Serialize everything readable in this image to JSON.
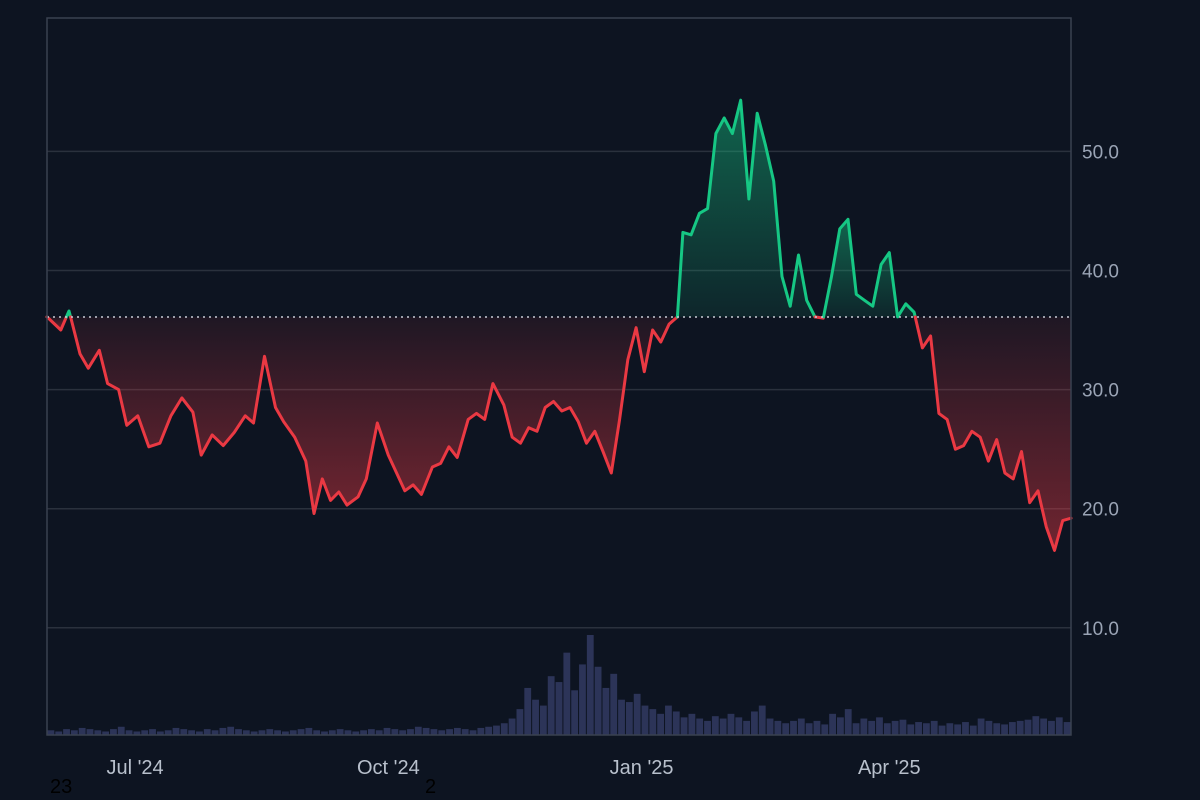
{
  "chart_data": {
    "type": "area",
    "baseline": 36.1,
    "x_range": [
      "2024-05-30",
      "2025-06-06"
    ],
    "ylim": [
      1,
      61.2
    ],
    "y_ticks": [
      "10.0",
      "20.0",
      "30.0",
      "40.0",
      "50.0"
    ],
    "y_tick_values": [
      10,
      20,
      30,
      40,
      50
    ],
    "x_ticks": [
      {
        "label": "Jul '24",
        "date": "2024-07-01"
      },
      {
        "label": "Oct '24",
        "date": "2024-10-01"
      },
      {
        "label": "Jan '25",
        "date": "2025-01-01"
      },
      {
        "label": "Apr '25",
        "date": "2025-04-01"
      }
    ],
    "grid": true,
    "series": [
      {
        "role": "price",
        "points": [
          [
            "2024-05-30",
            36.1
          ],
          [
            "2024-06-04",
            35.0
          ],
          [
            "2024-06-07",
            36.6
          ],
          [
            "2024-06-11",
            33.0
          ],
          [
            "2024-06-14",
            31.8
          ],
          [
            "2024-06-18",
            33.3
          ],
          [
            "2024-06-21",
            30.5
          ],
          [
            "2024-06-25",
            30.0
          ],
          [
            "2024-06-28",
            27.0
          ],
          [
            "2024-07-02",
            27.8
          ],
          [
            "2024-07-06",
            25.2
          ],
          [
            "2024-07-10",
            25.5
          ],
          [
            "2024-07-14",
            27.8
          ],
          [
            "2024-07-18",
            29.3
          ],
          [
            "2024-07-22",
            28.1
          ],
          [
            "2024-07-25",
            24.5
          ],
          [
            "2024-07-29",
            26.2
          ],
          [
            "2024-08-02",
            25.3
          ],
          [
            "2024-08-06",
            26.4
          ],
          [
            "2024-08-10",
            27.8
          ],
          [
            "2024-08-13",
            27.2
          ],
          [
            "2024-08-17",
            32.8
          ],
          [
            "2024-08-21",
            28.5
          ],
          [
            "2024-08-24",
            27.3
          ],
          [
            "2024-08-28",
            26.0
          ],
          [
            "2024-09-01",
            24.0
          ],
          [
            "2024-09-04",
            19.6
          ],
          [
            "2024-09-07",
            22.5
          ],
          [
            "2024-09-10",
            20.7
          ],
          [
            "2024-09-13",
            21.4
          ],
          [
            "2024-09-16",
            20.3
          ],
          [
            "2024-09-20",
            21.0
          ],
          [
            "2024-09-23",
            22.5
          ],
          [
            "2024-09-27",
            27.2
          ],
          [
            "2024-10-01",
            24.5
          ],
          [
            "2024-10-04",
            23.0
          ],
          [
            "2024-10-07",
            21.5
          ],
          [
            "2024-10-10",
            22.0
          ],
          [
            "2024-10-13",
            21.2
          ],
          [
            "2024-10-17",
            23.5
          ],
          [
            "2024-10-20",
            23.8
          ],
          [
            "2024-10-23",
            25.2
          ],
          [
            "2024-10-26",
            24.3
          ],
          [
            "2024-10-30",
            27.5
          ],
          [
            "2024-11-02",
            28.0
          ],
          [
            "2024-11-05",
            27.5
          ],
          [
            "2024-11-08",
            30.5
          ],
          [
            "2024-11-12",
            28.7
          ],
          [
            "2024-11-15",
            26.0
          ],
          [
            "2024-11-18",
            25.5
          ],
          [
            "2024-11-21",
            26.8
          ],
          [
            "2024-11-24",
            26.5
          ],
          [
            "2024-11-27",
            28.5
          ],
          [
            "2024-11-30",
            29.0
          ],
          [
            "2024-12-03",
            28.2
          ],
          [
            "2024-12-06",
            28.5
          ],
          [
            "2024-12-09",
            27.3
          ],
          [
            "2024-12-12",
            25.5
          ],
          [
            "2024-12-15",
            26.5
          ],
          [
            "2024-12-18",
            24.8
          ],
          [
            "2024-12-21",
            23.0
          ],
          [
            "2024-12-24",
            27.5
          ],
          [
            "2024-12-27",
            32.5
          ],
          [
            "2024-12-30",
            35.2
          ],
          [
            "2025-01-02",
            31.5
          ],
          [
            "2025-01-05",
            35.0
          ],
          [
            "2025-01-08",
            34.0
          ],
          [
            "2025-01-11",
            35.5
          ],
          [
            "2025-01-14",
            36.1
          ],
          [
            "2025-01-16",
            43.2
          ],
          [
            "2025-01-19",
            43.0
          ],
          [
            "2025-01-22",
            44.8
          ],
          [
            "2025-01-25",
            45.2
          ],
          [
            "2025-01-28",
            51.5
          ],
          [
            "2025-01-31",
            52.8
          ],
          [
            "2025-02-03",
            51.5
          ],
          [
            "2025-02-06",
            54.3
          ],
          [
            "2025-02-09",
            46.0
          ],
          [
            "2025-02-12",
            53.2
          ],
          [
            "2025-02-15",
            50.5
          ],
          [
            "2025-02-18",
            47.5
          ],
          [
            "2025-02-21",
            39.5
          ],
          [
            "2025-02-24",
            37.0
          ],
          [
            "2025-02-27",
            41.3
          ],
          [
            "2025-03-02",
            37.5
          ],
          [
            "2025-03-05",
            36.1
          ],
          [
            "2025-03-08",
            36.0
          ],
          [
            "2025-03-11",
            39.5
          ],
          [
            "2025-03-14",
            43.5
          ],
          [
            "2025-03-17",
            44.3
          ],
          [
            "2025-03-20",
            38.0
          ],
          [
            "2025-03-23",
            37.5
          ],
          [
            "2025-03-26",
            37.0
          ],
          [
            "2025-03-29",
            40.5
          ],
          [
            "2025-04-01",
            41.5
          ],
          [
            "2025-04-04",
            36.1
          ],
          [
            "2025-04-07",
            37.2
          ],
          [
            "2025-04-10",
            36.5
          ],
          [
            "2025-04-13",
            33.5
          ],
          [
            "2025-04-16",
            34.5
          ],
          [
            "2025-04-19",
            28.0
          ],
          [
            "2025-04-22",
            27.5
          ],
          [
            "2025-04-25",
            25.0
          ],
          [
            "2025-04-28",
            25.3
          ],
          [
            "2025-05-01",
            26.5
          ],
          [
            "2025-05-04",
            26.0
          ],
          [
            "2025-05-07",
            24.0
          ],
          [
            "2025-05-10",
            25.8
          ],
          [
            "2025-05-13",
            23.0
          ],
          [
            "2025-05-16",
            22.5
          ],
          [
            "2025-05-19",
            24.8
          ],
          [
            "2025-05-22",
            20.5
          ],
          [
            "2025-05-25",
            21.5
          ],
          [
            "2025-05-28",
            18.5
          ],
          [
            "2025-05-31",
            16.5
          ],
          [
            "2025-06-03",
            19.0
          ],
          [
            "2025-06-06",
            19.2
          ]
        ]
      },
      {
        "role": "volume",
        "volume_heights": [
          4,
          3,
          5,
          4,
          6,
          5,
          4,
          3,
          5,
          7,
          4,
          3,
          4,
          5,
          3,
          4,
          6,
          5,
          4,
          3,
          5,
          4,
          6,
          7,
          5,
          4,
          3,
          4,
          5,
          4,
          3,
          4,
          5,
          6,
          4,
          3,
          4,
          5,
          4,
          3,
          4,
          5,
          4,
          6,
          5,
          4,
          5,
          7,
          6,
          5,
          4,
          5,
          6,
          5,
          4,
          6,
          7,
          8,
          10,
          14,
          22,
          40,
          30,
          25,
          50,
          45,
          70,
          38,
          60,
          85,
          58,
          40,
          52,
          30,
          28,
          35,
          25,
          22,
          18,
          25,
          20,
          15,
          18,
          14,
          12,
          16,
          14,
          18,
          15,
          12,
          20,
          25,
          14,
          12,
          10,
          12,
          14,
          10,
          12,
          9,
          18,
          15,
          22,
          10,
          14,
          12,
          15,
          10,
          12,
          13,
          9,
          11,
          10,
          12,
          8,
          10,
          9,
          11,
          8,
          14,
          12,
          10,
          9,
          11,
          12,
          13,
          16,
          14,
          12,
          15,
          11
        ]
      }
    ],
    "colors": {
      "up_line": "#16c784",
      "down_line": "#ea3943",
      "volume": "#2c3458",
      "baseline": "#c8ccd6",
      "grid": "#2a313d"
    }
  },
  "stray_labels": {
    "left": "23",
    "mid": "2"
  }
}
